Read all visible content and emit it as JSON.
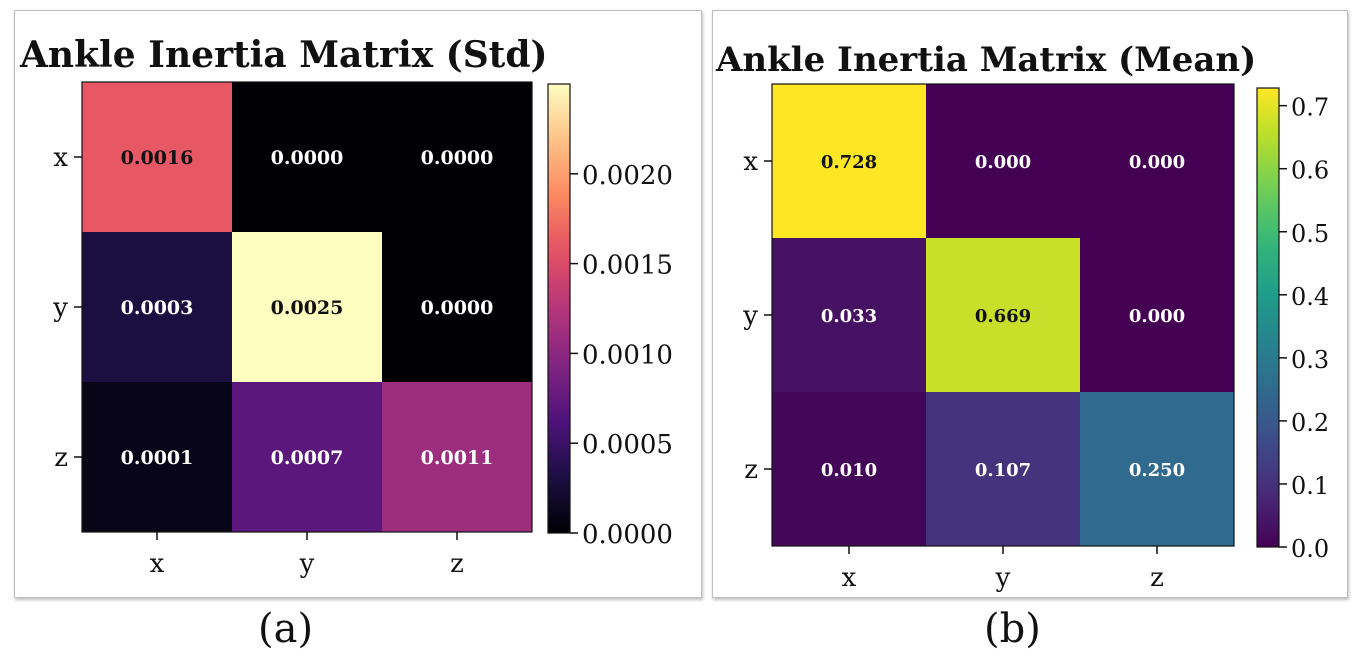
{
  "captions": {
    "a": "(a)",
    "b": "(b)"
  },
  "chart_data": [
    {
      "type": "heatmap",
      "title": "Ankle Inertia Matrix (Std)",
      "xlabel": "",
      "ylabel": "",
      "x_categories": [
        "x",
        "y",
        "z"
      ],
      "y_categories": [
        "x",
        "y",
        "z"
      ],
      "values": [
        [
          0.0016,
          0.0,
          0.0
        ],
        [
          0.0003,
          0.0025,
          0.0
        ],
        [
          0.0001,
          0.0007,
          0.0011
        ]
      ],
      "cell_labels": [
        [
          "0.0016",
          "0.0000",
          "0.0000"
        ],
        [
          "0.0003",
          "0.0025",
          "0.0000"
        ],
        [
          "0.0001",
          "0.0007",
          "0.0011"
        ]
      ],
      "colormap": "magma",
      "colorbar_range": [
        0,
        0.0025
      ],
      "colorbar_ticks": [
        0.0,
        0.0005,
        0.001,
        0.0015,
        0.002
      ],
      "colorbar_tick_labels": [
        "0.0000",
        "0.0005",
        "0.0010",
        "0.0015",
        "0.0020"
      ]
    },
    {
      "type": "heatmap",
      "title": "Ankle Inertia Matrix (Mean)",
      "xlabel": "",
      "ylabel": "",
      "x_categories": [
        "x",
        "y",
        "z"
      ],
      "y_categories": [
        "x",
        "y",
        "z"
      ],
      "values": [
        [
          0.728,
          0.0,
          0.0
        ],
        [
          0.033,
          0.669,
          0.0
        ],
        [
          0.01,
          0.107,
          0.25
        ]
      ],
      "cell_labels": [
        [
          "0.728",
          "0.000",
          "0.000"
        ],
        [
          "0.033",
          "0.669",
          "0.000"
        ],
        [
          "0.010",
          "0.107",
          "0.250"
        ]
      ],
      "colormap": "viridis",
      "colorbar_range": [
        0,
        0.728
      ],
      "colorbar_ticks": [
        0.0,
        0.1,
        0.2,
        0.3,
        0.4,
        0.5,
        0.6,
        0.7
      ],
      "colorbar_tick_labels": [
        "0.0",
        "0.1",
        "0.2",
        "0.3",
        "0.4",
        "0.5",
        "0.6",
        "0.7"
      ]
    }
  ]
}
